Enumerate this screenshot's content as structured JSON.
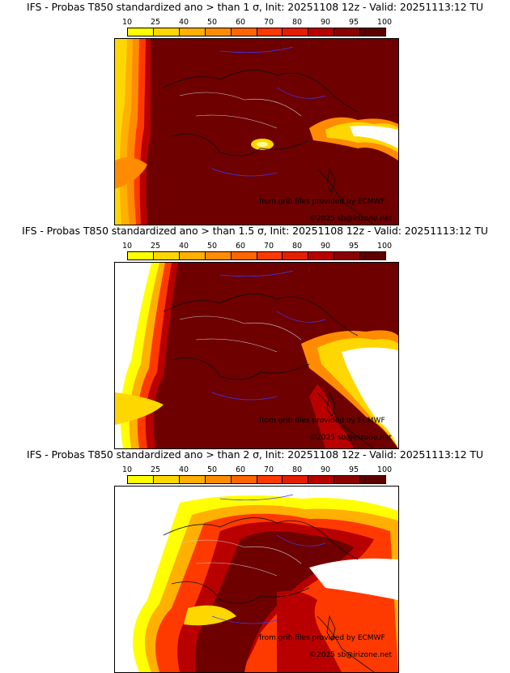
{
  "legend": {
    "labels": [
      "10",
      "25",
      "40",
      "50",
      "60",
      "70",
      "80",
      "90",
      "95",
      "100"
    ],
    "colors": [
      "#ffff00",
      "#ffd700",
      "#ffb000",
      "#ff8c00",
      "#ff6600",
      "#ff3a00",
      "#e61e00",
      "#b80000",
      "#8b0000",
      "#5c0000"
    ]
  },
  "panels": [
    {
      "title": "IFS - Probas T850  standardized ano > than 1 σ, Init: 20251108 12z - Valid: 20251113:12 TU",
      "credit_source": "from grib files provided by ECMWF",
      "credit_copyright": "©2025 sb@irizone.net"
    },
    {
      "title": "IFS - Probas T850  standardized ano > than 1.5 σ, Init: 20251108 12z - Valid: 20251113:12 TU",
      "credit_source": "from grib files provided by ECMWF",
      "credit_copyright": "©2025 sb@irizone.net"
    },
    {
      "title": "IFS - Probas T850  standardized ano > than 2 σ, Init: 20251108 12z - Valid: 20251113:12 TU",
      "credit_source": "from grib files provided by ECMWF",
      "credit_copyright": "©2025 sb@irizone.net"
    }
  ]
}
